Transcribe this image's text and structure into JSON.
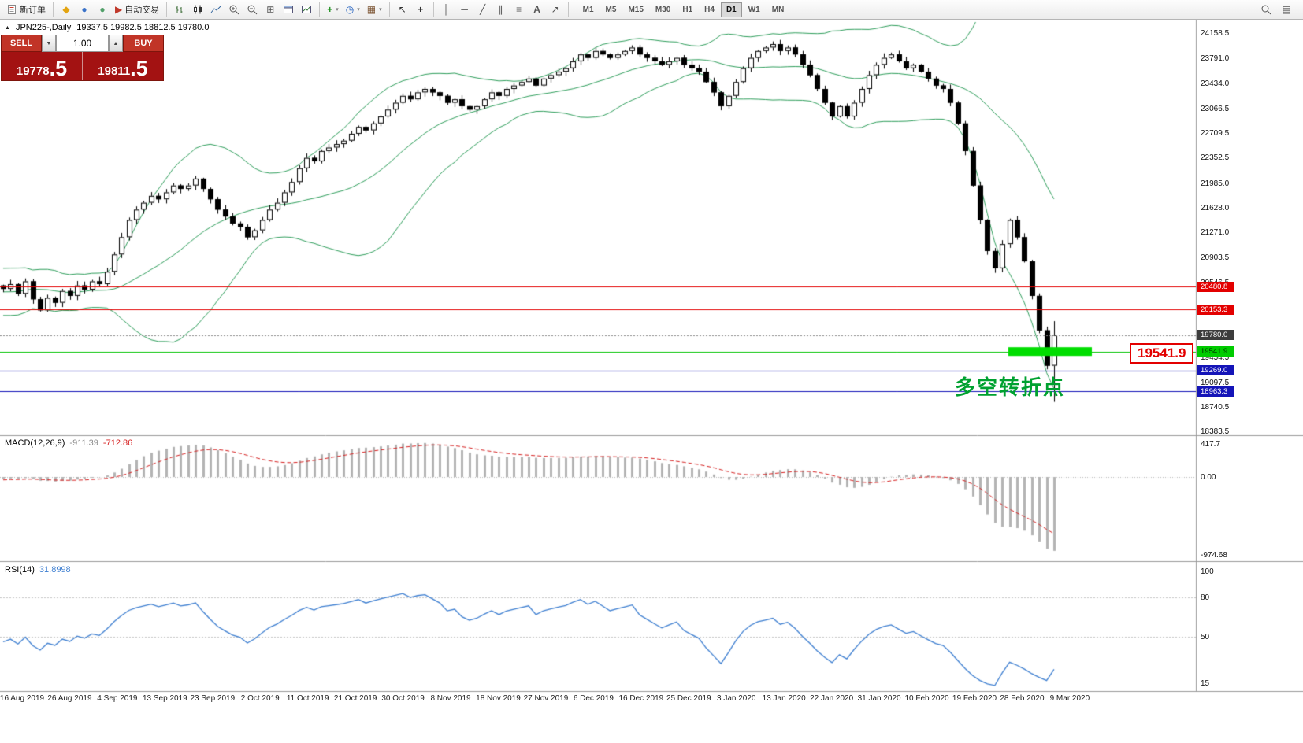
{
  "icons": {
    "expand": "▲",
    "caret": "▾",
    "diamond": "◆",
    "bullet": "●",
    "play": "▶",
    "tile": "⊞",
    "plus": "+",
    "clock": "◷",
    "template": "▦",
    "cursor": "↖",
    "crosshair": "+",
    "vline": "│",
    "hline": "─",
    "trendline": "╱",
    "channel": "∥",
    "fibo": "≡",
    "text": "A",
    "arrow": "↗",
    "spin_up": "▲",
    "spin_down": "▼",
    "grid": "▤"
  },
  "toolbar": {
    "new_order_label": "新订单",
    "auto_trading_label": "自动交易",
    "timeframes": [
      "M1",
      "M5",
      "M15",
      "M30",
      "H1",
      "H4",
      "D1",
      "W1",
      "MN"
    ],
    "active_timeframe": "D1"
  },
  "chart": {
    "title_symbol": "JPN225-,Daily",
    "title_ohlc": "19337.5 19982.5 18812.5 19780.0"
  },
  "one_click": {
    "sell_label": "SELL",
    "buy_label": "BUY",
    "volume": "1.00",
    "sell_price_main": "19778",
    "sell_price_fraction": ".5",
    "buy_price_main": "19811",
    "buy_price_fraction": ".5"
  },
  "indicators": {
    "macd_name": "MACD(12,26,9)",
    "macd_value": "-911.39",
    "macd_signal": "-712.86",
    "rsi_name": "RSI(14)",
    "rsi_value": "31.8998"
  },
  "annotations": {
    "turning_point_text": "多空转折点",
    "turning_point_color": "#00a130",
    "price_callout_text": "19541.9",
    "price_callout_color": "#e30000"
  },
  "chart_data": [
    {
      "type": "candlestick",
      "symbol": "JPN225-",
      "timeframe": "Daily",
      "current_bar": {
        "open": 19337.5,
        "high": 19982.5,
        "low": 18812.5,
        "close": 19780.0
      },
      "ylim": [
        18340,
        24320
      ],
      "y_ticks": [
        "24158.5",
        "23791.0",
        "23434.0",
        "23066.5",
        "22709.5",
        "22352.5",
        "21985.0",
        "21628.0",
        "21271.0",
        "20903.5",
        "20546.5",
        "19454.5",
        "19097.5",
        "18740.5",
        "18383.5"
      ],
      "x_dates": [
        "16 Aug 2019",
        "26 Aug 2019",
        "4 Sep 2019",
        "13 Sep 2019",
        "23 Sep 2019",
        "2 Oct 2019",
        "11 Oct 2019",
        "21 Oct 2019",
        "30 Oct 2019",
        "8 Nov 2019",
        "18 Nov 2019",
        "27 Nov 2019",
        "6 Dec 2019",
        "16 Dec 2019",
        "25 Dec 2019",
        "3 Jan 2020",
        "13 Jan 2020",
        "22 Jan 2020",
        "31 Jan 2020",
        "10 Feb 2020",
        "19 Feb 2020",
        "28 Feb 2020",
        "9 Mar 2020"
      ],
      "warmup_closes": [
        20650,
        20500,
        20300,
        20150,
        20050,
        20200,
        20400,
        20600,
        20700,
        20550,
        20350,
        20200,
        20300,
        20500,
        20650,
        20600,
        20450,
        20300,
        20400,
        20500
      ],
      "closes": [
        20450,
        20520,
        20380,
        20560,
        20300,
        20140,
        20320,
        20250,
        20420,
        20350,
        20500,
        20440,
        20560,
        20520,
        20700,
        20950,
        21200,
        21450,
        21600,
        21700,
        21800,
        21750,
        21850,
        21950,
        21900,
        21950,
        22050,
        21900,
        21750,
        21600,
        21500,
        21400,
        21350,
        21200,
        21300,
        21450,
        21600,
        21700,
        21850,
        22000,
        22200,
        22350,
        22300,
        22450,
        22500,
        22550,
        22600,
        22700,
        22800,
        22750,
        22850,
        22950,
        23050,
        23150,
        23250,
        23200,
        23300,
        23350,
        23300,
        23250,
        23150,
        23200,
        23100,
        23050,
        23100,
        23200,
        23300,
        23250,
        23350,
        23400,
        23450,
        23500,
        23400,
        23500,
        23550,
        23600,
        23650,
        23750,
        23850,
        23800,
        23900,
        23850,
        23800,
        23850,
        23900,
        23950,
        23850,
        23800,
        23750,
        23700,
        23750,
        23800,
        23700,
        23650,
        23600,
        23450,
        23300,
        23100,
        23250,
        23450,
        23650,
        23800,
        23900,
        23950,
        24000,
        23900,
        23950,
        23850,
        23700,
        23550,
        23350,
        23150,
        22950,
        23100,
        22950,
        23150,
        23350,
        23550,
        23700,
        23800,
        23850,
        23750,
        23650,
        23700,
        23600,
        23500,
        23400,
        23350,
        23150,
        22850,
        22450,
        21950,
        21450,
        21000,
        20750,
        21100,
        21450,
        21200,
        20850,
        20350,
        19850,
        19337.5,
        19780
      ],
      "bollinger": {
        "period": 20,
        "deviation": 2,
        "color": "#2e9e5b"
      },
      "hlines": [
        {
          "price": 20480.8,
          "label": "20480.8",
          "tag_name": "resistance-tag-1",
          "line_color": "#e30000",
          "line_style": "solid",
          "tag_bg": "#e30000",
          "tag_text": "#ffffff"
        },
        {
          "price": 20153.3,
          "label": "20153.3",
          "tag_name": "resistance-tag-2",
          "line_color": "#e30000",
          "line_style": "solid",
          "tag_bg": "#e30000",
          "tag_text": "#ffffff"
        },
        {
          "price": 19780.0,
          "label": "19780.0",
          "tag_name": "current-price-tag",
          "line_color": "#888888",
          "line_style": "dotted",
          "tag_bg": "#3d3d3d",
          "tag_text": "#ffffff"
        },
        {
          "price": 19541.9,
          "label": "19541.9",
          "tag_name": "turning-point-tag",
          "line_color": "#00c400",
          "line_style": "solid",
          "tag_bg": "#00cc00",
          "tag_text": "#002b00"
        },
        {
          "price": 19269.0,
          "label": "19269.0",
          "tag_name": "support-tag-1",
          "line_color": "#1414b8",
          "line_style": "solid",
          "tag_bg": "#1414b8",
          "tag_text": "#ffffff"
        },
        {
          "price": 18963.3,
          "label": "18963.3",
          "tag_name": "support-tag-2",
          "line_color": "#1414b8",
          "line_style": "solid",
          "tag_bg": "#1414b8",
          "tag_text": "#ffffff"
        }
      ],
      "highlight_bar": {
        "price": 19541.9,
        "color": "#00dd00"
      },
      "candle_up_color": "#ffffff",
      "candle_down_color": "#000000"
    },
    {
      "type": "macd",
      "name": "MACD(12,26,9)",
      "params": [
        12,
        26,
        9
      ],
      "source": "closes",
      "current_values": [
        -911.39,
        -712.86
      ],
      "ylim": [
        -1047,
        504
      ],
      "y_ticks": [
        {
          "value": 417.7,
          "label": "417.7"
        },
        {
          "value": 0,
          "label": "0.00"
        },
        {
          "value": -974.68,
          "label": "-974.68"
        }
      ],
      "histogram_color": "#b4b4b4",
      "signal_color": "#d62020",
      "signal_style": "dashed"
    },
    {
      "type": "rsi",
      "name": "RSI(14)",
      "period": 14,
      "source": "closes",
      "current_value": 31.8998,
      "ylim": [
        9.7,
        106.4
      ],
      "y_ticks": [
        {
          "value": 100,
          "label": "100"
        },
        {
          "value": 80,
          "label": "80"
        },
        {
          "value": 50,
          "label": "50"
        },
        {
          "value": 15,
          "label": "15"
        }
      ],
      "levels": [
        80,
        50
      ],
      "line_color": "#3e7fd1"
    }
  ]
}
